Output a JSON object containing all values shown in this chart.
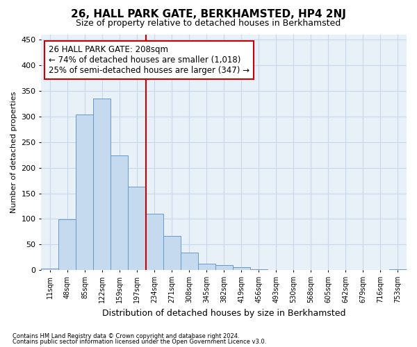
{
  "title": "26, HALL PARK GATE, BERKHAMSTED, HP4 2NJ",
  "subtitle": "Size of property relative to detached houses in Berkhamsted",
  "xlabel": "Distribution of detached houses by size in Berkhamsted",
  "ylabel": "Number of detached properties",
  "footer1": "Contains HM Land Registry data © Crown copyright and database right 2024.",
  "footer2": "Contains public sector information licensed under the Open Government Licence v3.0.",
  "bin_labels": [
    "11sqm",
    "48sqm",
    "85sqm",
    "122sqm",
    "159sqm",
    "197sqm",
    "234sqm",
    "271sqm",
    "308sqm",
    "345sqm",
    "382sqm",
    "419sqm",
    "456sqm",
    "493sqm",
    "530sqm",
    "568sqm",
    "605sqm",
    "642sqm",
    "679sqm",
    "716sqm",
    "753sqm"
  ],
  "bar_values": [
    3,
    99,
    304,
    335,
    224,
    163,
    110,
    67,
    34,
    13,
    10,
    5,
    1,
    0,
    0,
    0,
    0,
    0,
    0,
    0,
    2
  ],
  "bar_color": "#c5d9ef",
  "bar_edgecolor": "#6699cc",
  "vline_color": "#cc0000",
  "annotation_text": "26 HALL PARK GATE: 208sqm\n← 74% of detached houses are smaller (1,018)\n25% of semi-detached houses are larger (347) →",
  "annotation_box_color": "#cc0000",
  "ylim": [
    0,
    460
  ],
  "yticks": [
    0,
    50,
    100,
    150,
    200,
    250,
    300,
    350,
    400,
    450
  ],
  "grid_color": "#c8d8eb",
  "bg_color": "#e8f0f8",
  "title_fontsize": 11,
  "subtitle_fontsize": 9,
  "annotation_fontsize": 8.5,
  "ylabel_fontsize": 8,
  "xlabel_fontsize": 9
}
